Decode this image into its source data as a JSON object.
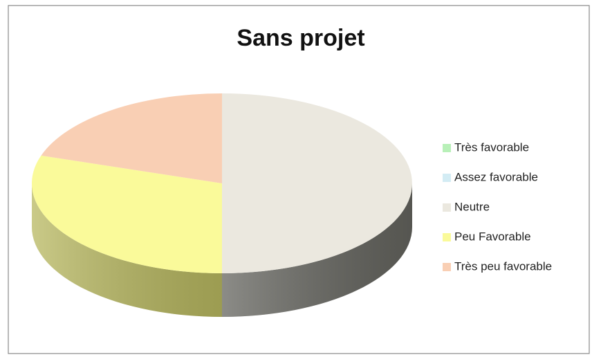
{
  "chart_data": {
    "type": "pie",
    "title": "Sans projet",
    "categories": [
      "Très favorable",
      "Assez favorable",
      "Neutre",
      "Peu Favorable",
      "Très peu favorable"
    ],
    "values": [
      0,
      0,
      50,
      30,
      20
    ],
    "colors": [
      "#b8f0b8",
      "#d3ecf4",
      "#ebe8df",
      "#fafa9a",
      "#f9cfb4"
    ],
    "side_colors": [
      "#7fb07f",
      "#90aab2",
      "#65655f",
      "#b8b860",
      "#c09a82"
    ],
    "legend": "right"
  }
}
